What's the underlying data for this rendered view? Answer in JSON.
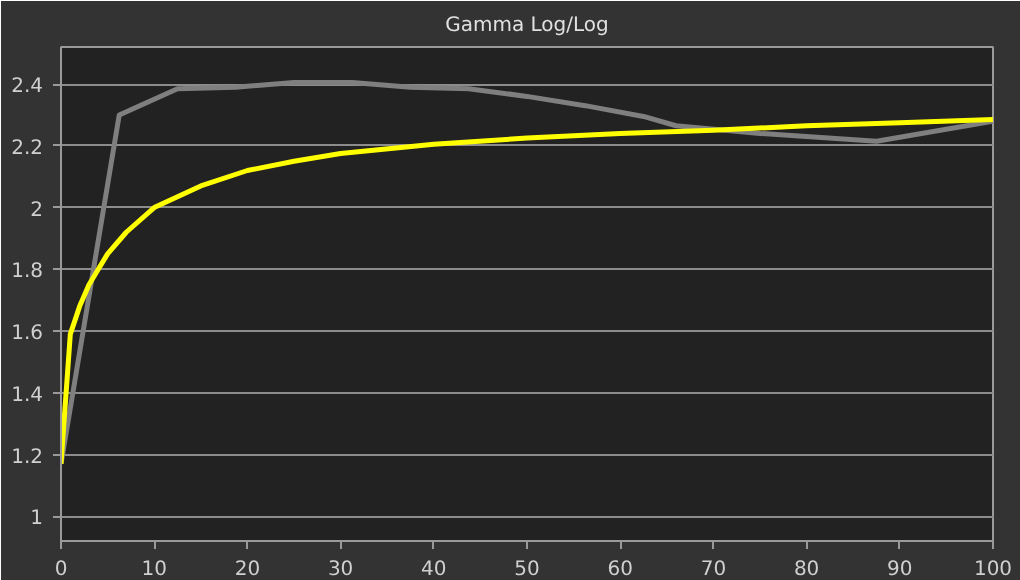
{
  "chart_data": {
    "type": "line",
    "title": "Gamma Log/Log",
    "xlim": [
      0,
      100
    ],
    "xticks": [
      0,
      10,
      20,
      30,
      40,
      50,
      60,
      70,
      80,
      90,
      100
    ],
    "ylim": [
      0.92,
      2.52
    ],
    "yticks": [
      1,
      {
        "value": 1.2,
        "label": "1.2"
      },
      {
        "value": 1.4,
        "label": "1.4"
      },
      {
        "value": 1.6,
        "label": "1.6"
      },
      {
        "value": 1.8,
        "label": "1.8"
      },
      2,
      {
        "value": 2.2,
        "label": "2.2"
      },
      {
        "value": 2.4,
        "label": "2.4"
      }
    ],
    "grid": "y",
    "marker": "none",
    "line_style": "solid",
    "series": [
      {
        "color": "#7f7f7f",
        "x": [
          0,
          6.25,
          12.5,
          18.75,
          25,
          31.25,
          37.5,
          43.75,
          50,
          56.25,
          62.5,
          66,
          75,
          87.5,
          100
        ],
        "values": [
          1.17,
          2.3,
          2.385,
          2.39,
          2.405,
          2.405,
          2.39,
          2.385,
          2.36,
          2.33,
          2.295,
          2.265,
          2.24,
          2.215,
          2.28
        ]
      },
      {
        "color": "#ffff00",
        "x": [
          0,
          1,
          2,
          3,
          4,
          5,
          7,
          10,
          15,
          20,
          25,
          30,
          40,
          50,
          60,
          70,
          80,
          90,
          100
        ],
        "values": [
          1.17,
          1.59,
          1.68,
          1.75,
          1.8,
          1.85,
          1.92,
          2.0,
          2.07,
          2.12,
          2.15,
          2.175,
          2.205,
          2.225,
          2.24,
          2.25,
          2.265,
          2.275,
          2.285
        ]
      }
    ]
  }
}
